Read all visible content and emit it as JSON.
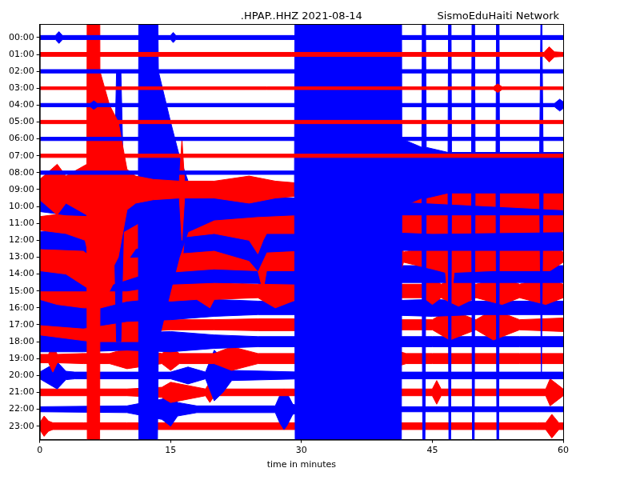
{
  "chart_data": {
    "type": "line",
    "title": ".HPAP..HHZ 2021-08-14",
    "subtitle": "SismoEduHaiti Network",
    "xlabel": "time in minutes",
    "xlim": [
      0,
      60
    ],
    "xticks": [
      0,
      15,
      30,
      45,
      60
    ],
    "ylim": [
      23.8,
      -0.8
    ],
    "yticks": [
      {
        "value": 0,
        "label": "00:00"
      },
      {
        "value": 1,
        "label": "01:00"
      },
      {
        "value": 2,
        "label": "02:00"
      },
      {
        "value": 3,
        "label": "03:00"
      },
      {
        "value": 4,
        "label": "04:00"
      },
      {
        "value": 5,
        "label": "05:00"
      },
      {
        "value": 6,
        "label": "06:00"
      },
      {
        "value": 7,
        "label": "07:00"
      },
      {
        "value": 8,
        "label": "08:00"
      },
      {
        "value": 9,
        "label": "09:00"
      },
      {
        "value": 10,
        "label": "10:00"
      },
      {
        "value": 11,
        "label": "11:00"
      },
      {
        "value": 12,
        "label": "12:00"
      },
      {
        "value": 13,
        "label": "13:00"
      },
      {
        "value": 14,
        "label": "14:00"
      },
      {
        "value": 15,
        "label": "15:00"
      },
      {
        "value": 16,
        "label": "16:00"
      },
      {
        "value": 17,
        "label": "17:00"
      },
      {
        "value": 18,
        "label": "18:00"
      },
      {
        "value": 19,
        "label": "19:00"
      },
      {
        "value": 20,
        "label": "20:00"
      },
      {
        "value": 21,
        "label": "21:00"
      },
      {
        "value": 22,
        "label": "22:00"
      },
      {
        "value": 23,
        "label": "23:00"
      }
    ],
    "grid": false,
    "series": [
      {
        "color": "blue",
        "x": [
          0,
          1.8,
          2.2,
          2.6,
          15,
          15.3,
          15.6,
          60
        ],
        "low": [
          -0.12,
          -0.12,
          -0.35,
          -0.12,
          -0.12,
          -0.3,
          -0.12,
          -0.12
        ],
        "high": [
          0.12,
          0.12,
          0.35,
          0.12,
          0.12,
          0.3,
          0.12,
          0.12
        ]
      },
      {
        "color": "red",
        "x": [
          0,
          57.8,
          58.4,
          59,
          60
        ],
        "low": [
          0.88,
          0.88,
          0.55,
          0.85,
          0.88
        ],
        "high": [
          1.12,
          1.12,
          1.45,
          1.15,
          1.12
        ]
      },
      {
        "color": "blue",
        "x": [
          0,
          60
        ],
        "low": [
          1.9,
          1.9
        ],
        "high": [
          2.1,
          2.1
        ]
      },
      {
        "color": "red",
        "x": [
          0,
          52,
          52.5,
          53,
          60
        ],
        "low": [
          2.92,
          2.92,
          2.75,
          2.92,
          2.92
        ],
        "high": [
          3.08,
          3.08,
          3.25,
          3.08,
          3.08
        ]
      },
      {
        "color": "blue",
        "x": [
          0,
          5.8,
          6.2,
          6.6,
          59,
          59.6,
          60
        ],
        "low": [
          3.9,
          3.9,
          3.75,
          3.9,
          3.9,
          3.65,
          3.8
        ],
        "high": [
          4.1,
          4.1,
          4.25,
          4.1,
          4.1,
          4.35,
          4.2
        ]
      },
      {
        "color": "red",
        "x": [
          0,
          60
        ],
        "low": [
          4.9,
          4.9
        ],
        "high": [
          5.1,
          5.1
        ]
      },
      {
        "color": "blue",
        "x": [
          0,
          60
        ],
        "low": [
          5.9,
          5.9
        ],
        "high": [
          6.1,
          6.1
        ]
      },
      {
        "color": "red",
        "x": [
          0,
          60
        ],
        "low": [
          6.9,
          6.9
        ],
        "high": [
          7.1,
          7.1
        ]
      },
      {
        "color": "blue",
        "x": [
          0,
          29.2,
          29.35,
          41.4,
          41.5,
          43.8,
          44,
          44.3,
          46.8,
          47,
          47.2,
          49.5,
          49.7,
          49.9,
          52.3,
          52.5,
          52.7,
          57.3,
          57.5,
          57.7,
          60
        ],
        "low": [
          7.9,
          7.9,
          -22,
          -22,
          6,
          6.5,
          -22,
          6.5,
          6.8,
          -22,
          6.8,
          6.8,
          -22,
          6.8,
          6.8,
          -22,
          6.8,
          6.8,
          -4,
          6.8,
          6.8
        ],
        "high": [
          8.1,
          8.1,
          38,
          38,
          10,
          9.5,
          38,
          9.5,
          9.2,
          38,
          9.2,
          9.2,
          38,
          9.2,
          9.2,
          38,
          9.2,
          9.2,
          20,
          9.2,
          9.2
        ]
      },
      {
        "color": "red",
        "x": [
          0,
          2,
          3,
          5.4,
          5.5,
          6.8,
          6.9,
          8,
          9,
          10,
          11,
          13,
          16,
          16.3,
          16.6,
          17,
          20,
          24,
          27,
          29.3,
          60
        ],
        "low": [
          8.4,
          7.5,
          8.2,
          7.5,
          -21,
          -21,
          2,
          4,
          5,
          7.8,
          8.2,
          8.4,
          8.5,
          6,
          8.5,
          8.5,
          8.5,
          8.2,
          8.5,
          8.6,
          7.8
        ],
        "high": [
          9.6,
          10.5,
          9.8,
          10.5,
          39,
          39,
          16,
          14,
          13,
          10.2,
          9.8,
          9.6,
          9.5,
          12,
          9.5,
          9.5,
          9.5,
          9.8,
          9.5,
          9.4,
          10.2
        ]
      },
      {
        "color": "blue",
        "x": [
          0,
          3,
          8.5,
          8.8,
          9.3,
          9.6,
          11.3,
          11.45,
          13.2,
          13.6,
          15,
          16,
          17,
          20,
          25,
          29.3,
          60
        ],
        "low": [
          9.7,
          9.5,
          9.4,
          2,
          2,
          8.5,
          9,
          -20,
          -20,
          2,
          5,
          7,
          8.5,
          9.2,
          9.4,
          9.5,
          9.5
        ],
        "high": [
          10.3,
          10.5,
          10.6,
          18,
          18,
          11.5,
          11,
          40,
          40,
          18,
          15,
          13,
          11.5,
          10.8,
          10.6,
          10.5,
          10.5
        ]
      },
      {
        "color": "red",
        "x": [
          0,
          3,
          5.2,
          7,
          9,
          11,
          14,
          16,
          16.3,
          16.6,
          20,
          24,
          25,
          25.6,
          26,
          30,
          35,
          40,
          45,
          60
        ],
        "low": [
          10.6,
          10.4,
          10,
          6,
          8,
          9.5,
          10,
          10.4,
          8.5,
          10.2,
          10.4,
          10,
          9.2,
          10,
          10.4,
          10.4,
          10.5,
          10.5,
          10.4,
          10.5
        ],
        "high": [
          11.4,
          11.6,
          12,
          16,
          14,
          12.5,
          12,
          11.6,
          13.5,
          11.8,
          11.6,
          12,
          12.8,
          12,
          11.6,
          11.6,
          11.5,
          11.5,
          11.6,
          11.5
        ]
      },
      {
        "color": "blue",
        "x": [
          0,
          5,
          8.5,
          9,
          11,
          15,
          20,
          24,
          25,
          26,
          30,
          60
        ],
        "low": [
          11.5,
          11.4,
          10,
          11,
          11,
          11.2,
          11.4,
          10.8,
          10.2,
          11.3,
          11.4,
          11.4
        ],
        "high": [
          12.5,
          12.6,
          14,
          13,
          13,
          12.8,
          12.6,
          13.2,
          13.8,
          12.7,
          12.6,
          12.6
        ]
      },
      {
        "color": "red",
        "x": [
          0,
          3,
          6,
          9,
          12,
          20,
          25,
          25.6,
          26,
          30,
          31,
          34,
          35.5,
          36,
          36.5,
          40,
          41.4,
          41.7,
          45,
          46.5,
          47,
          47.5,
          52,
          57,
          58.5,
          60
        ],
        "low": [
          12.2,
          12,
          11,
          11.5,
          12,
          12.3,
          12.2,
          11,
          12.2,
          12.2,
          12,
          12.3,
          10.5,
          10,
          12.2,
          12.2,
          12.2,
          12.7,
          12.3,
          12.1,
          9.5,
          12.1,
          12.2,
          12.2,
          12.2,
          12.7
        ],
        "high": [
          13.8,
          14,
          15,
          14.5,
          14,
          13.7,
          13.8,
          15,
          13.8,
          13.8,
          14,
          13.7,
          15.5,
          16,
          13.8,
          13.8,
          13.8,
          13.3,
          13.7,
          13.9,
          16.5,
          13.9,
          13.8,
          13.8,
          13.8,
          13.3
        ]
      },
      {
        "color": "blue",
        "x": [
          0,
          5,
          10,
          15,
          20,
          30,
          40,
          45,
          50,
          60
        ],
        "low": [
          13,
          13,
          13,
          13.4,
          13.5,
          13.4,
          13.5,
          13.5,
          13.5,
          13.5
        ],
        "high": [
          15,
          15,
          15,
          14.6,
          14.5,
          14.6,
          14.5,
          14.5,
          14.5,
          14.5
        ]
      },
      {
        "color": "red",
        "x": [
          0,
          2,
          5,
          7,
          10,
          12,
          15,
          18,
          19.5,
          20,
          25,
          27,
          30,
          35,
          40,
          44,
          45,
          46,
          48,
          50,
          53,
          55,
          58,
          60
        ],
        "low": [
          14.5,
          14.2,
          14,
          14,
          14.4,
          14.5,
          14.4,
          14.5,
          14,
          14.5,
          14.6,
          14,
          14.6,
          14.6,
          14.6,
          14.6,
          14.2,
          14.6,
          14.1,
          14.6,
          14.2,
          14.6,
          14.2,
          14.6
        ],
        "high": [
          15.5,
          15.8,
          16,
          16,
          15.6,
          15.5,
          15.6,
          15.5,
          16,
          15.5,
          15.4,
          16,
          15.4,
          15.4,
          15.4,
          15.4,
          15.8,
          15.4,
          15.9,
          15.4,
          15.8,
          15.4,
          15.8,
          15.4
        ]
      },
      {
        "color": "blue",
        "x": [
          0,
          5,
          10,
          15,
          20,
          25,
          30,
          35,
          45,
          50,
          60
        ],
        "low": [
          15,
          14.8,
          15.2,
          15.3,
          15.5,
          15.6,
          15.6,
          15.65,
          15.5,
          15.6,
          15.6
        ],
        "high": [
          17,
          17.2,
          16.8,
          16.7,
          16.5,
          16.4,
          16.4,
          16.35,
          16.5,
          16.4,
          16.4
        ]
      },
      {
        "color": "red",
        "x": [
          0,
          3,
          6,
          9,
          11.5,
          12,
          15,
          20,
          25,
          30,
          31,
          35,
          40,
          45,
          47,
          50,
          52,
          55,
          60
        ],
        "low": [
          16.4,
          16.2,
          16,
          16,
          16,
          16.6,
          16.7,
          16.7,
          16.65,
          16.65,
          16.2,
          16.65,
          16.7,
          16.7,
          16.1,
          16.7,
          16.1,
          16.7,
          16.6
        ],
        "high": [
          17.6,
          17.8,
          18,
          18,
          18,
          17.4,
          17.3,
          17.3,
          17.35,
          17.35,
          17.8,
          17.35,
          17.3,
          17.3,
          17.9,
          17.3,
          17.9,
          17.3,
          17.4
        ]
      },
      {
        "color": "blue",
        "x": [
          0,
          5,
          10,
          15,
          20,
          25,
          30,
          35,
          40,
          45,
          50,
          55,
          60
        ],
        "low": [
          17.4,
          17.4,
          17.5,
          17.4,
          17.6,
          17.7,
          17.7,
          17.7,
          17.7,
          17.7,
          17.7,
          17.7,
          17.7
        ],
        "high": [
          18.6,
          18.6,
          18.5,
          18.6,
          18.4,
          18.3,
          18.3,
          18.3,
          18.3,
          18.3,
          18.3,
          18.3,
          18.3
        ]
      },
      {
        "color": "red",
        "x": [
          0,
          1,
          1.5,
          2,
          5,
          8,
          10,
          14,
          15,
          16,
          20,
          22,
          25,
          30,
          33,
          34,
          35,
          38,
          40,
          42,
          45,
          50,
          55,
          58,
          60
        ],
        "low": [
          18.75,
          18.75,
          18.2,
          18.75,
          18.7,
          18.7,
          18.4,
          18.7,
          18.3,
          18.7,
          18.7,
          18.3,
          18.7,
          18.7,
          18.7,
          18.2,
          18.7,
          18.7,
          18.4,
          18.7,
          18.7,
          18.7,
          18.7,
          18.7,
          18.7
        ],
        "high": [
          19.25,
          19.25,
          19.8,
          19.25,
          19.3,
          19.3,
          19.6,
          19.3,
          19.7,
          19.3,
          19.3,
          19.7,
          19.3,
          19.3,
          19.3,
          19.8,
          19.3,
          19.3,
          19.6,
          19.3,
          19.3,
          19.3,
          19.3,
          19.3,
          19.3
        ]
      },
      {
        "color": "blue",
        "x": [
          0,
          2,
          3,
          4,
          15,
          17,
          19,
          20,
          21,
          22,
          30,
          60
        ],
        "low": [
          19.8,
          19.2,
          19.75,
          19.8,
          19.8,
          19.5,
          19.8,
          18.5,
          19,
          19.7,
          19.8,
          19.8
        ],
        "high": [
          20.2,
          20.8,
          20.25,
          20.2,
          20.2,
          20.5,
          20.2,
          21.5,
          21,
          20.3,
          20.2,
          20.2
        ]
      },
      {
        "color": "red",
        "x": [
          0,
          10,
          14,
          15,
          19,
          19.5,
          20,
          29.8,
          30,
          30.5,
          31,
          35,
          45,
          45.5,
          46,
          58,
          58.5,
          60
        ],
        "low": [
          20.8,
          20.8,
          20.7,
          20.4,
          20.8,
          20.4,
          20.8,
          20.8,
          19.7,
          20.2,
          20.7,
          20.8,
          20.8,
          20.3,
          20.8,
          20.8,
          20.2,
          20.8
        ],
        "high": [
          21.2,
          21.2,
          21.3,
          21.6,
          21.2,
          21.6,
          21.2,
          21.2,
          22.3,
          21.8,
          21.3,
          21.2,
          21.2,
          21.7,
          21.2,
          21.2,
          21.8,
          21.2
        ]
      },
      {
        "color": "blue",
        "x": [
          0,
          10,
          14,
          15,
          15.8,
          18,
          27,
          27.5,
          28,
          28.3,
          29,
          30,
          60
        ],
        "low": [
          21.85,
          21.8,
          21.4,
          21,
          21.6,
          21.8,
          21.8,
          21.2,
          20.8,
          21,
          21.7,
          21.85,
          21.85
        ],
        "high": [
          22.15,
          22.2,
          22.6,
          23,
          22.4,
          22.2,
          22.2,
          22.8,
          23.2,
          23,
          22.3,
          22.15,
          22.15
        ]
      },
      {
        "color": "red",
        "x": [
          0,
          0.5,
          1,
          1.5,
          5,
          10,
          15,
          30,
          57,
          58,
          58.7,
          59.5,
          60
        ],
        "low": [
          22.8,
          22.4,
          22.7,
          22.8,
          22.8,
          22.8,
          22.8,
          22.8,
          22.8,
          22.8,
          22.3,
          22.8,
          22.8
        ],
        "high": [
          23.2,
          23.6,
          23.3,
          23.2,
          23.2,
          23.2,
          23.2,
          23.2,
          23.2,
          23.2,
          23.7,
          23.2,
          23.2
        ]
      }
    ]
  }
}
